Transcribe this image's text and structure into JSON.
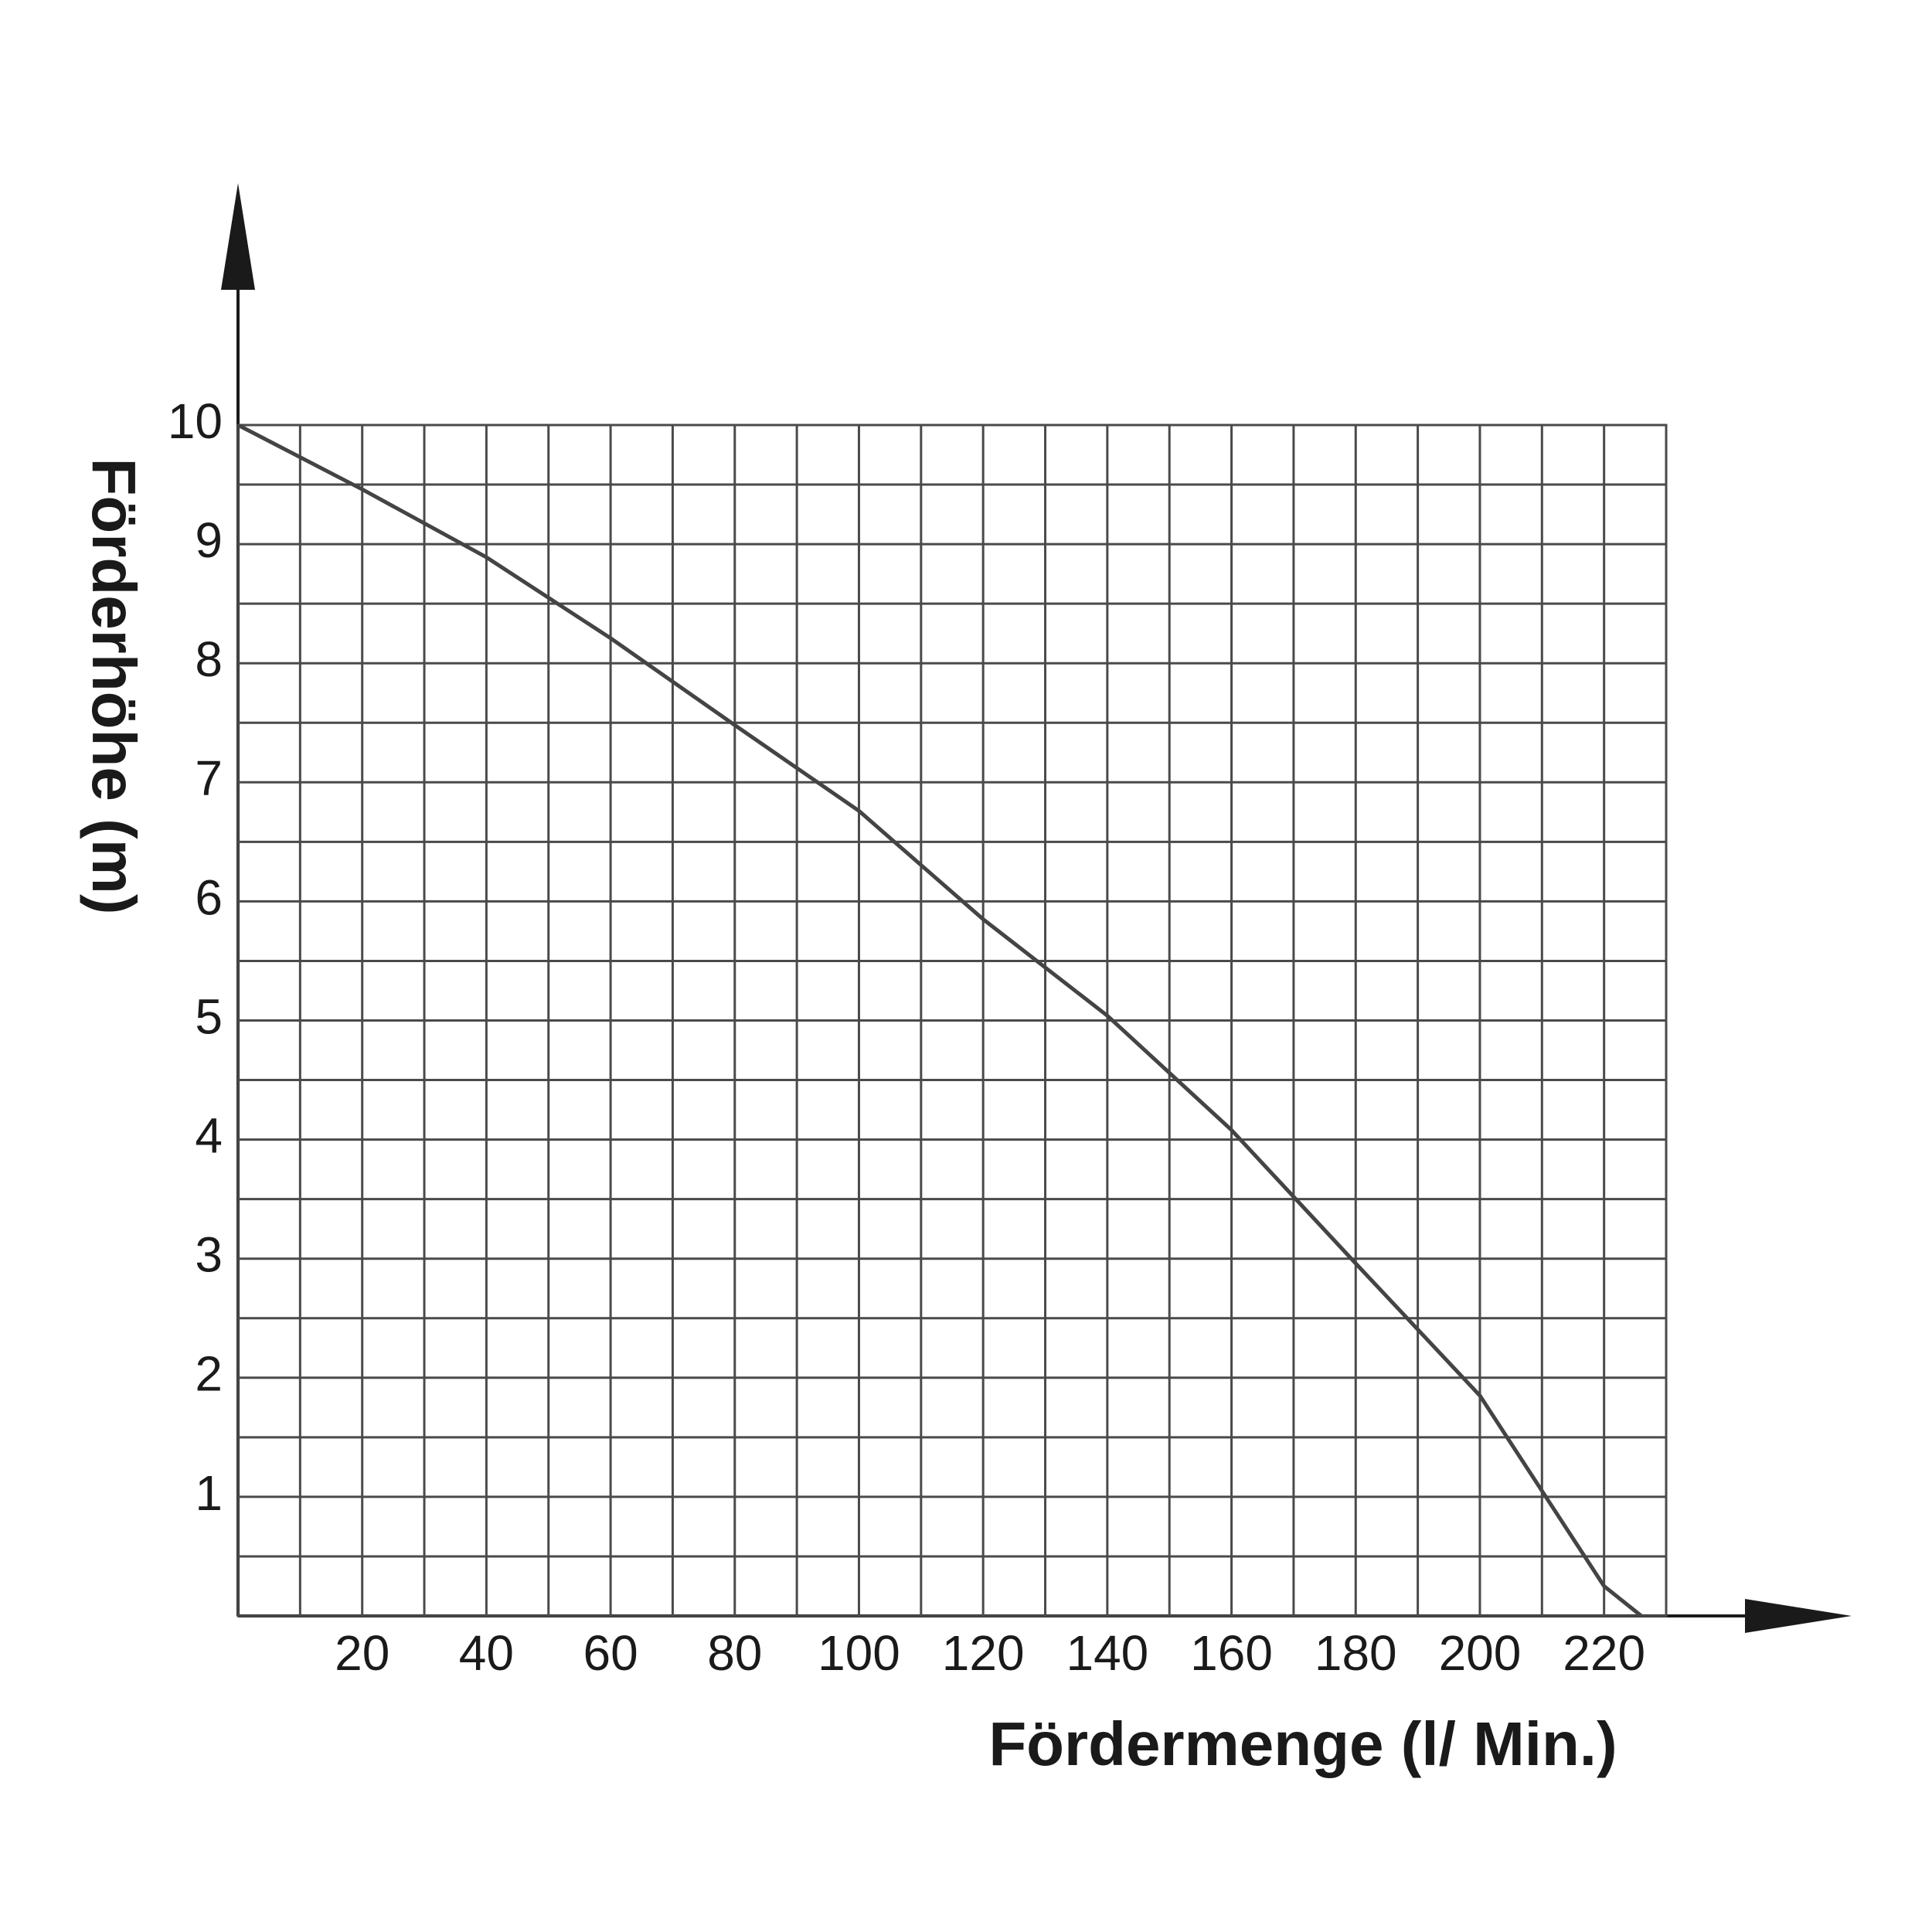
{
  "chart_data": {
    "type": "line",
    "x_label": "Fördermenge (l/ Min.)",
    "y_label": "Förderhöhe (m)",
    "x": [
      0,
      20,
      40,
      60,
      80,
      100,
      120,
      140,
      160,
      180,
      200,
      220,
      226
    ],
    "series": [
      {
        "color": "#444444",
        "values": [
          10,
          9.46,
          8.89,
          8.21,
          7.48,
          6.76,
          5.85,
          5.04,
          4.08,
          2.96,
          1.85,
          0.25,
          0
        ]
      }
    ],
    "xlim": [
      0,
      230
    ],
    "ylim": [
      0,
      10
    ],
    "xticks": [
      20,
      40,
      60,
      80,
      100,
      120,
      140,
      160,
      180,
      200,
      220
    ],
    "yticks": [
      1,
      2,
      3,
      4,
      5,
      6,
      7,
      8,
      9,
      10
    ],
    "grid": true
  }
}
